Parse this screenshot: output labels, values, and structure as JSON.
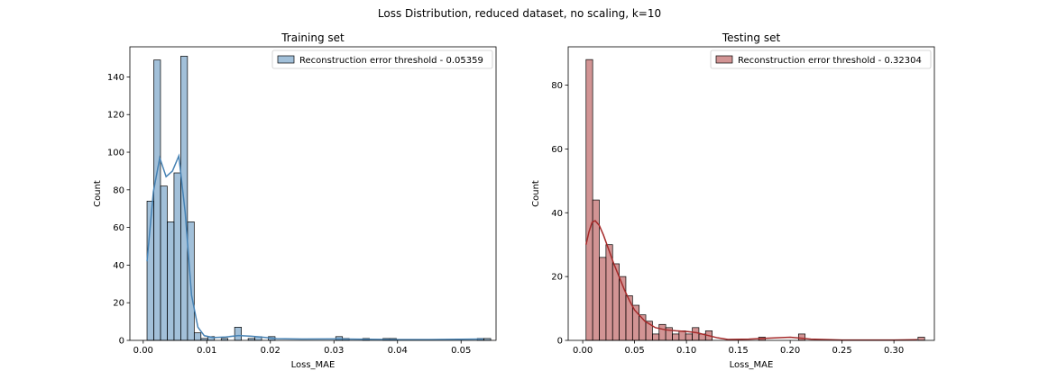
{
  "suptitle": "Loss Distribution, reduced dataset, no scaling, k=10",
  "chart_data": [
    {
      "type": "histogram",
      "title": "Training set",
      "xlabel": "Loss_MAE",
      "ylabel": "Count",
      "xlim": [
        -0.0021,
        0.0555
      ],
      "ylim": [
        0,
        156
      ],
      "xticks": [
        0.0,
        0.01,
        0.02,
        0.03,
        0.04,
        0.05
      ],
      "xtick_labels": [
        "0.00",
        "0.01",
        "0.02",
        "0.03",
        "0.04",
        "0.05"
      ],
      "yticks": [
        0,
        20,
        40,
        60,
        80,
        100,
        120,
        140
      ],
      "ytick_labels": [
        "0",
        "20",
        "40",
        "60",
        "80",
        "100",
        "120",
        "140"
      ],
      "bin_start": 0.0006,
      "bin_width": 0.00106,
      "counts": [
        74,
        149,
        82,
        63,
        89,
        151,
        63,
        4,
        1,
        2,
        0,
        1,
        0,
        7,
        0,
        1,
        2,
        0,
        2,
        0,
        0,
        0,
        0,
        0,
        0,
        0,
        0,
        0,
        2,
        1,
        0,
        0,
        1,
        0,
        0,
        1,
        1,
        0,
        0,
        0,
        0,
        0,
        0,
        0,
        0,
        0,
        0,
        0,
        0,
        1,
        1
      ],
      "kde_x": [
        0.0006,
        0.0016,
        0.0026,
        0.0036,
        0.0046,
        0.0056,
        0.0066,
        0.0076,
        0.0086,
        0.0096,
        0.011,
        0.013,
        0.015,
        0.017,
        0.019,
        0.021,
        0.025,
        0.03,
        0.035,
        0.04,
        0.045,
        0.05,
        0.0535
      ],
      "kde_y": [
        42,
        79,
        97,
        87,
        90,
        98,
        68,
        24,
        7,
        2.5,
        1.5,
        1.8,
        2.6,
        2.2,
        1.6,
        0.9,
        0.7,
        0.8,
        0.6,
        0.4,
        0.4,
        0.6,
        0.7
      ],
      "color": "#4682b4",
      "legend": "Reconstruction error threshold - 0.05359",
      "legend_position": "upper right"
    },
    {
      "type": "histogram",
      "title": "Testing set",
      "xlabel": "Loss_MAE",
      "ylabel": "Count",
      "xlim": [
        -0.014,
        0.339
      ],
      "ylim": [
        0,
        92
      ],
      "xticks": [
        0.0,
        0.05,
        0.1,
        0.15,
        0.2,
        0.25,
        0.3
      ],
      "xtick_labels": [
        "0.00",
        "0.05",
        "0.10",
        "0.15",
        "0.20",
        "0.25",
        "0.30"
      ],
      "yticks": [
        0,
        20,
        40,
        60,
        80
      ],
      "ytick_labels": [
        "0",
        "20",
        "40",
        "60",
        "80"
      ],
      "bin_start": 0.0032,
      "bin_width": 0.0064,
      "counts": [
        88,
        44,
        26,
        30,
        24,
        20,
        14,
        11,
        8,
        6,
        2,
        5,
        4,
        2,
        3,
        2,
        4,
        2,
        3,
        0,
        0,
        0,
        0,
        0,
        0,
        0,
        1,
        0,
        0,
        0,
        0,
        0,
        2,
        0,
        0,
        0,
        0,
        0,
        0,
        0,
        0,
        0,
        0,
        0,
        0,
        0,
        0,
        0,
        0,
        0,
        1
      ],
      "kde_x": [
        0.0032,
        0.006,
        0.009,
        0.012,
        0.016,
        0.02,
        0.025,
        0.03,
        0.035,
        0.04,
        0.045,
        0.05,
        0.06,
        0.07,
        0.08,
        0.09,
        0.1,
        0.11,
        0.12,
        0.13,
        0.14,
        0.16,
        0.18,
        0.2,
        0.22,
        0.25,
        0.3,
        0.3225
      ],
      "kde_y": [
        30,
        34,
        37,
        37.5,
        36,
        33,
        28.5,
        24,
        20,
        16,
        12.5,
        9.5,
        6,
        4,
        3.3,
        3,
        2.8,
        2.4,
        1.6,
        0.8,
        0.3,
        0.4,
        0.7,
        1.0,
        0.4,
        0.1,
        0.1,
        0.2
      ],
      "color": "#a52a2a",
      "legend": "Reconstruction error threshold - 0.32304",
      "legend_position": "upper right"
    }
  ]
}
